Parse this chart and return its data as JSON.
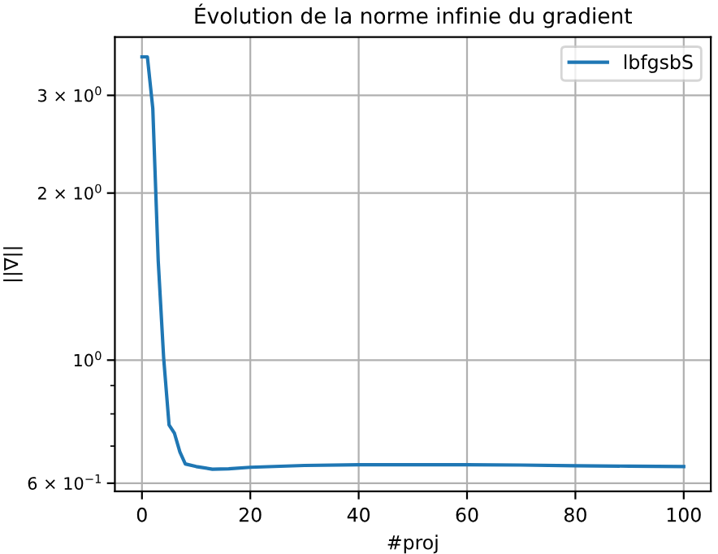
{
  "chart_data": {
    "type": "line",
    "title": "Évolution de la norme infinie du gradient",
    "xlabel": "#proj",
    "ylabel": "||∇||",
    "x": [
      0,
      1,
      2,
      3,
      4,
      5,
      6,
      7,
      8,
      10,
      13,
      16,
      20,
      30,
      40,
      50,
      60,
      70,
      80,
      90,
      100
    ],
    "series": [
      {
        "name": "lbfgsbS",
        "color": "#1f77b4",
        "values": [
          3.52,
          3.52,
          2.84,
          1.51,
          1.01,
          0.764,
          0.738,
          0.683,
          0.65,
          0.643,
          0.636,
          0.637,
          0.641,
          0.646,
          0.648,
          0.648,
          0.648,
          0.647,
          0.645,
          0.644,
          0.643
        ]
      }
    ],
    "log": "y",
    "xlim": [
      -5,
      105
    ],
    "ylim": [
      0.58,
      3.82
    ],
    "xticks": [
      0,
      20,
      40,
      60,
      80,
      100
    ],
    "yticks": [
      {
        "value": 0.6,
        "label": "6 × 10$^{−1}$"
      },
      {
        "value": 1,
        "label": "10$^{0}$"
      },
      {
        "value": 2,
        "label": "2 × 10$^{0}$"
      },
      {
        "value": 3,
        "label": "3 × 10$^{0}$"
      }
    ],
    "grid": true,
    "legend": "top right",
    "marker": "none",
    "line_style": "solid"
  }
}
